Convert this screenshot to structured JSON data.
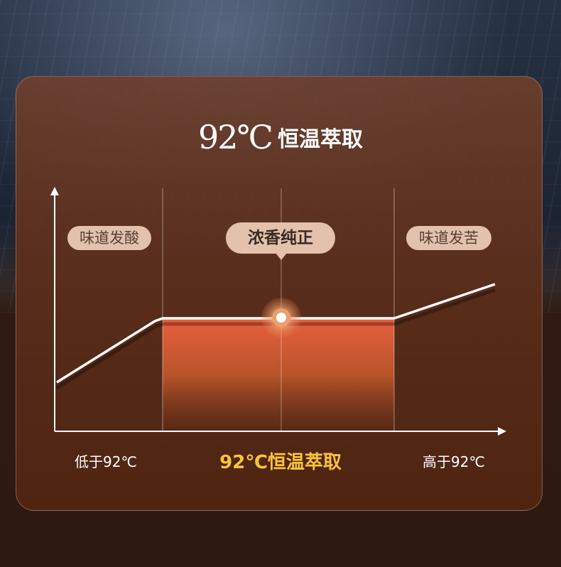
{
  "title": {
    "temp": "92℃",
    "text": "恒温萃取"
  },
  "labels": {
    "left": "味道发酸",
    "center": "浓香纯正",
    "right": "味道发苦"
  },
  "axis_labels": {
    "low": "低于92℃",
    "mid": "92℃恒温萃取",
    "high": "高于92℃"
  },
  "colors": {
    "highlight": "#f7c53a",
    "fill": "#e05a3a",
    "pill": "#e3c1ac"
  }
}
